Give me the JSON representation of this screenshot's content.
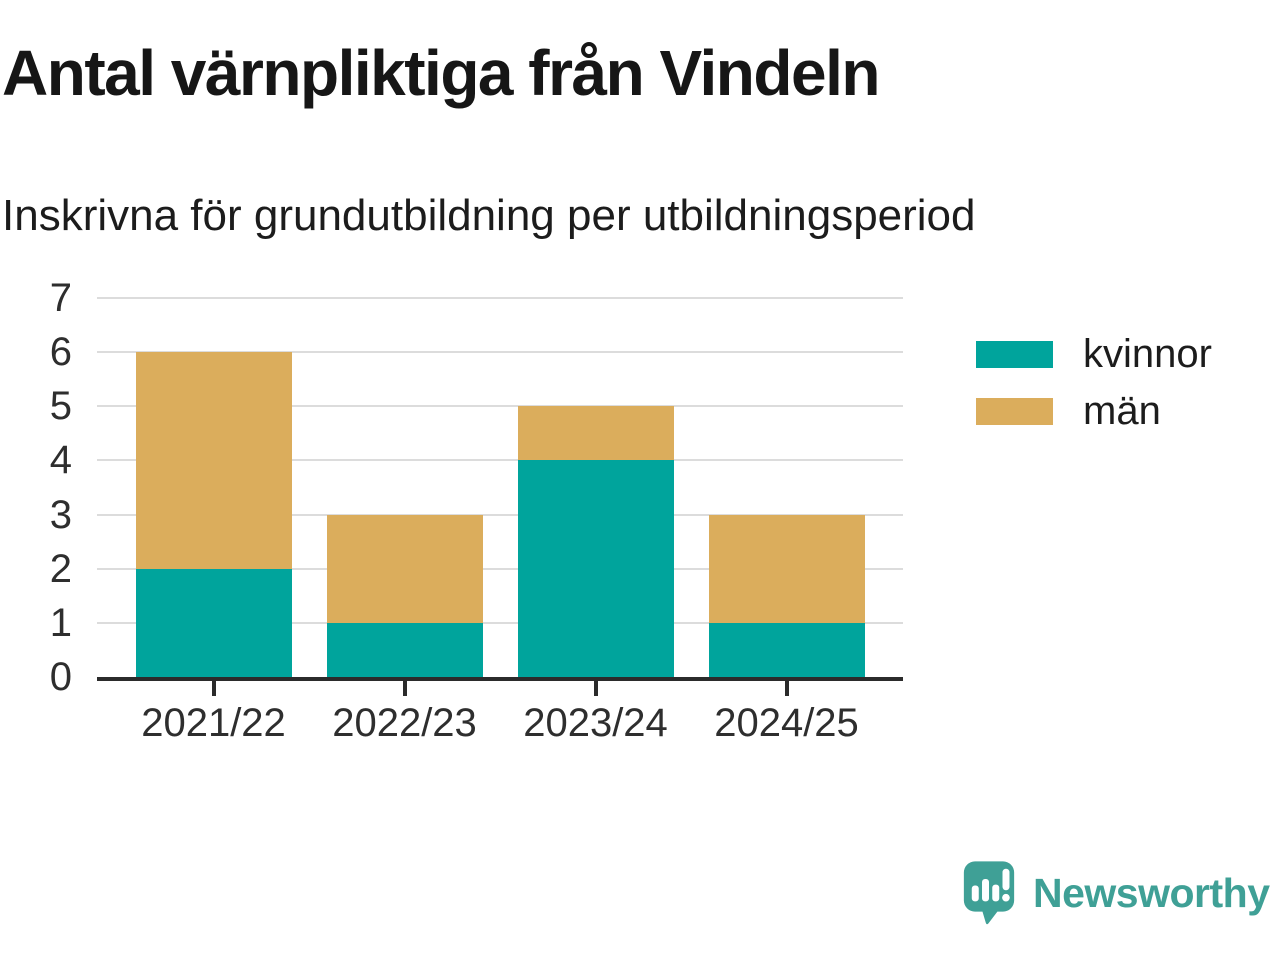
{
  "header": {
    "title": "Antal värnpliktiga från Vindeln",
    "subtitle": "Inskrivna för grundutbildning per utbildningsperiod"
  },
  "chart_data": {
    "type": "bar",
    "stacked": true,
    "categories": [
      "2021/22",
      "2022/23",
      "2023/24",
      "2024/25"
    ],
    "series": [
      {
        "name": "kvinnor",
        "values": [
          2,
          1,
          4,
          1
        ],
        "color": "#00A49C"
      },
      {
        "name": "män",
        "values": [
          4,
          2,
          1,
          2
        ],
        "color": "#DBAD5C"
      }
    ],
    "totals": [
      6,
      3,
      5,
      3
    ],
    "ylim": [
      0,
      7
    ],
    "yticks": [
      0,
      1,
      2,
      3,
      4,
      5,
      6,
      7
    ],
    "xlabel": "",
    "ylabel": "",
    "grid": true,
    "legend_position": "right",
    "gridline_color": "#dcdcdc",
    "axis_color": "#2b2b2b",
    "tick_label_color": "#2e2e2e"
  },
  "branding": {
    "name": "Newsworthy",
    "color": "#3FA096",
    "icon": "newsworthy-speech-bubble-chart-icon"
  }
}
